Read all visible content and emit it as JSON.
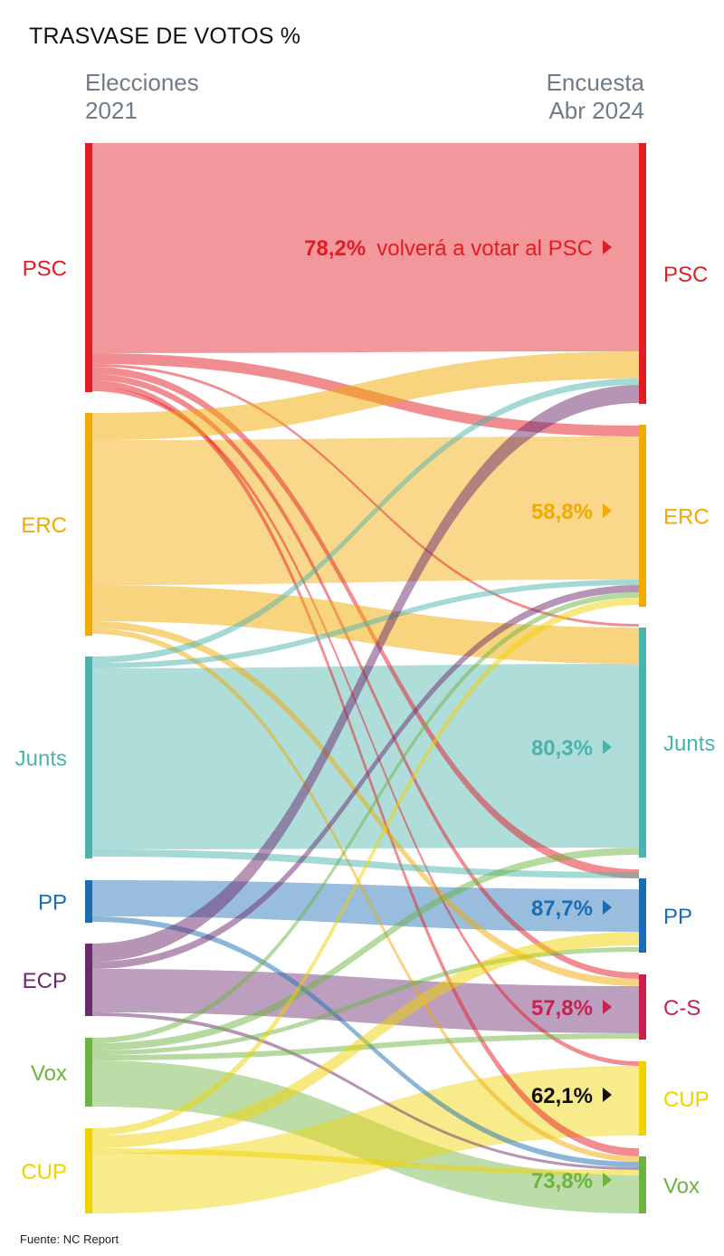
{
  "title": "TRASVASE DE VOTOS %",
  "columns": {
    "left": {
      "line1": "Elecciones",
      "line2": "2021"
    },
    "right": {
      "line1": "Encuesta",
      "line2": "Abr 2024"
    }
  },
  "source": "Fuente: NC Report",
  "colors": {
    "PSC": "#e31b23",
    "ERC": "#f2a900",
    "Junts": "#4bb3ad",
    "PP": "#1a6db3",
    "ECP": "#6b2a6e",
    "C-S": "#c8204f",
    "Vox": "#6cb33f",
    "CUP": "#f0d200"
  },
  "chart_data": {
    "type": "sankey",
    "title": "TRASVASE DE VOTOS %",
    "left_column_title": "Elecciones 2021",
    "right_column_title": "Encuesta Abr 2024",
    "sources": [
      "PSC",
      "ERC",
      "Junts",
      "PP",
      "ECP",
      "Vox",
      "CUP"
    ],
    "targets": [
      "PSC",
      "ERC",
      "Junts",
      "PP",
      "C-S",
      "CUP",
      "Vox"
    ],
    "retention": [
      {
        "party": "PSC",
        "value": 78.2,
        "label": "78,2%",
        "text": "volverá a votar al PSC"
      },
      {
        "party": "ERC",
        "value": 58.8,
        "label": "58,8%"
      },
      {
        "party": "Junts",
        "value": 80.3,
        "label": "80,3%"
      },
      {
        "party": "PP",
        "value": 87.7,
        "label": "87,7%"
      },
      {
        "party": "C-S",
        "value": 57.8,
        "label": "57,8%"
      },
      {
        "party": "CUP",
        "value": 62.1,
        "label": "62,1%"
      },
      {
        "party": "Vox",
        "value": 73.8,
        "label": "73,8%"
      }
    ]
  }
}
